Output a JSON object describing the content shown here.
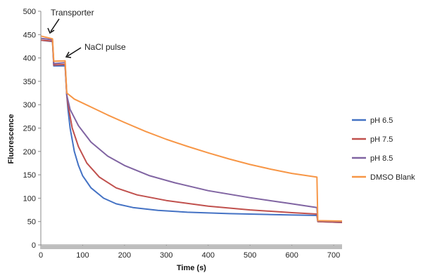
{
  "chart_data": {
    "type": "line",
    "xlabel": "Time (s)",
    "ylabel": "Fluorescence",
    "xlim": [
      0,
      720
    ],
    "ylim": [
      0,
      500
    ],
    "x_ticks": [
      0,
      100,
      200,
      300,
      400,
      500,
      600,
      700
    ],
    "y_ticks": [
      0,
      50,
      100,
      150,
      200,
      250,
      300,
      350,
      400,
      450,
      500
    ],
    "legend_position": "right",
    "grid": false,
    "annotations": [
      {
        "text": "Transporter",
        "x": 30,
        "y": 440
      },
      {
        "text": "NaCl pulse",
        "x": 60,
        "y": 390
      }
    ],
    "series": [
      {
        "name": "pH 6.5",
        "color": "#4472C4",
        "points": [
          [
            0,
            438
          ],
          [
            28,
            435
          ],
          [
            31,
            383
          ],
          [
            58,
            383
          ],
          [
            62,
            320
          ],
          [
            65,
            290
          ],
          [
            70,
            250
          ],
          [
            80,
            200
          ],
          [
            90,
            170
          ],
          [
            100,
            148
          ],
          [
            120,
            122
          ],
          [
            150,
            100
          ],
          [
            180,
            88
          ],
          [
            220,
            80
          ],
          [
            280,
            74
          ],
          [
            350,
            70
          ],
          [
            450,
            67
          ],
          [
            550,
            65
          ],
          [
            660,
            63
          ],
          [
            662,
            50
          ],
          [
            720,
            48
          ]
        ]
      },
      {
        "name": "pH 7.5",
        "color": "#C0504D",
        "points": [
          [
            0,
            438
          ],
          [
            28,
            436
          ],
          [
            31,
            385
          ],
          [
            58,
            386
          ],
          [
            62,
            320
          ],
          [
            65,
            300
          ],
          [
            75,
            250
          ],
          [
            90,
            210
          ],
          [
            110,
            175
          ],
          [
            140,
            145
          ],
          [
            180,
            122
          ],
          [
            230,
            107
          ],
          [
            300,
            95
          ],
          [
            400,
            83
          ],
          [
            500,
            75
          ],
          [
            600,
            69
          ],
          [
            660,
            66
          ],
          [
            662,
            50
          ],
          [
            720,
            48
          ]
        ]
      },
      {
        "name": "pH 8.5",
        "color": "#8064A2",
        "points": [
          [
            0,
            442
          ],
          [
            28,
            439
          ],
          [
            31,
            388
          ],
          [
            58,
            390
          ],
          [
            62,
            320
          ],
          [
            70,
            290
          ],
          [
            90,
            255
          ],
          [
            120,
            220
          ],
          [
            160,
            190
          ],
          [
            200,
            170
          ],
          [
            260,
            148
          ],
          [
            320,
            133
          ],
          [
            400,
            116
          ],
          [
            500,
            101
          ],
          [
            600,
            88
          ],
          [
            660,
            80
          ],
          [
            662,
            51
          ],
          [
            720,
            50
          ]
        ]
      },
      {
        "name": "DMSO Blank",
        "color": "#F79646",
        "points": [
          [
            0,
            447
          ],
          [
            28,
            441
          ],
          [
            31,
            393
          ],
          [
            58,
            394
          ],
          [
            62,
            325
          ],
          [
            80,
            312
          ],
          [
            120,
            295
          ],
          [
            160,
            278
          ],
          [
            200,
            262
          ],
          [
            250,
            243
          ],
          [
            300,
            226
          ],
          [
            350,
            211
          ],
          [
            400,
            197
          ],
          [
            450,
            184
          ],
          [
            500,
            172
          ],
          [
            550,
            162
          ],
          [
            600,
            153
          ],
          [
            660,
            145
          ],
          [
            662,
            52
          ],
          [
            720,
            51
          ]
        ]
      }
    ]
  }
}
